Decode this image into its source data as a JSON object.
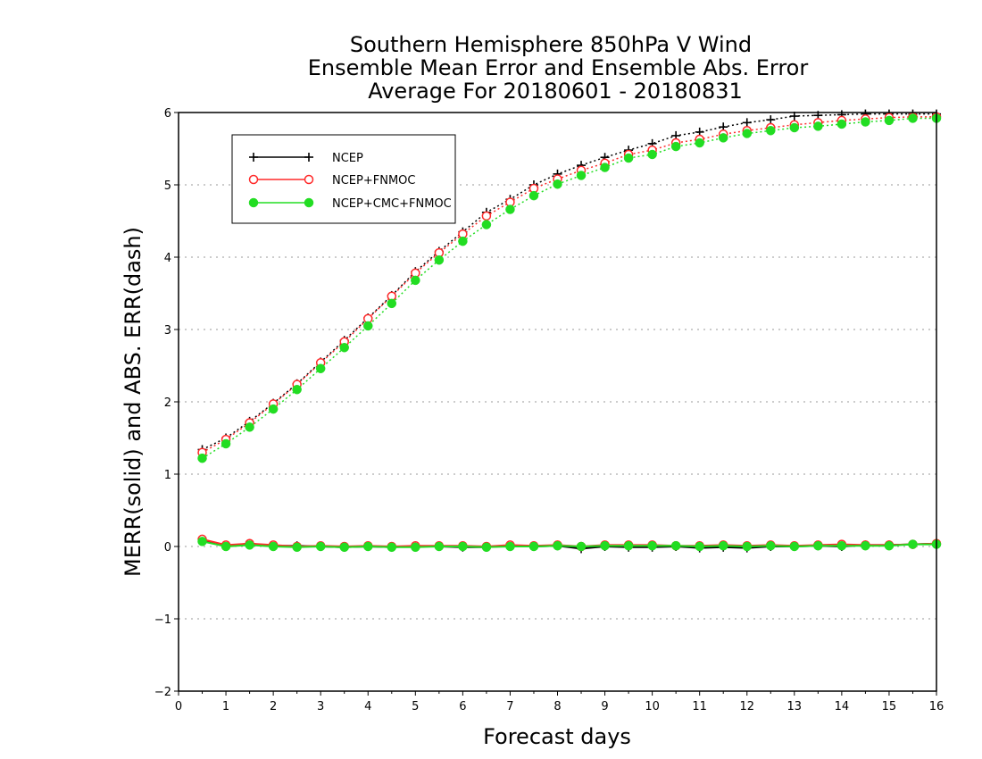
{
  "chart_data": {
    "type": "line",
    "title": [
      "Southern Hemisphere 850hPa V Wind",
      "Ensemble Mean Error and Ensemble Abs. Error",
      "Average For 20180601 - 20180831"
    ],
    "xlabel": "Forecast days",
    "ylabel": "MERR(solid) and ABS. ERR(dash)",
    "xlim": [
      0,
      16
    ],
    "ylim": [
      -2,
      6
    ],
    "xticks": [
      "0",
      "1",
      "2",
      "3",
      "4",
      "5",
      "6",
      "7",
      "8",
      "9",
      "10",
      "11",
      "12",
      "13",
      "14",
      "15",
      "16"
    ],
    "yticks": [
      "−2",
      "−1",
      "0",
      "1",
      "2",
      "3",
      "4",
      "5",
      "6"
    ],
    "grid": "horizontal dotted",
    "legend_position": "top-left",
    "x": [
      0.5,
      1,
      1.5,
      2,
      2.5,
      3,
      3.5,
      4,
      4.5,
      5,
      5.5,
      6,
      6.5,
      7,
      7.5,
      8,
      8.5,
      9,
      9.5,
      10,
      10.5,
      11,
      11.5,
      12,
      12.5,
      13,
      13.5,
      14,
      14.5,
      15,
      15.5,
      16
    ],
    "series": [
      {
        "name": "NCEP",
        "color": "#000000",
        "marker": "plus",
        "merr": [
          0.08,
          0.01,
          0.04,
          0.01,
          0.01,
          0.0,
          -0.01,
          0.0,
          -0.01,
          0.0,
          0.0,
          -0.01,
          -0.01,
          0.01,
          0.0,
          0.01,
          -0.03,
          0.0,
          -0.01,
          -0.01,
          0.0,
          -0.02,
          -0.01,
          -0.02,
          0.0,
          0.0,
          0.01,
          0.0,
          0.02,
          0.02,
          0.03,
          0.04
        ],
        "abs_err": [
          1.34,
          1.5,
          1.73,
          1.98,
          2.25,
          2.55,
          2.85,
          3.16,
          3.47,
          3.8,
          4.08,
          4.35,
          4.62,
          4.8,
          5.0,
          5.15,
          5.27,
          5.38,
          5.48,
          5.57,
          5.68,
          5.73,
          5.8,
          5.86,
          5.9,
          5.95,
          5.96,
          5.97,
          5.98,
          5.98,
          5.98,
          5.98
        ]
      },
      {
        "name": "NCEP+FNMOC",
        "color": "#ff2a2a",
        "marker": "open-circle",
        "merr": [
          0.1,
          0.02,
          0.04,
          0.02,
          0.0,
          0.01,
          0.0,
          0.01,
          0.0,
          0.01,
          0.01,
          0.01,
          0.0,
          0.02,
          0.01,
          0.02,
          0.0,
          0.02,
          0.02,
          0.02,
          0.01,
          0.01,
          0.02,
          0.01,
          0.02,
          0.01,
          0.02,
          0.03,
          0.02,
          0.02,
          0.03,
          0.04
        ],
        "abs_err": [
          1.3,
          1.48,
          1.71,
          1.97,
          2.24,
          2.54,
          2.83,
          3.15,
          3.46,
          3.78,
          4.06,
          4.32,
          4.57,
          4.76,
          4.95,
          5.08,
          5.2,
          5.3,
          5.42,
          5.48,
          5.58,
          5.63,
          5.7,
          5.75,
          5.79,
          5.83,
          5.86,
          5.89,
          5.91,
          5.93,
          5.94,
          5.94
        ]
      },
      {
        "name": "NCEP+CMC+FNMOC",
        "color": "#22dd22",
        "marker": "filled-circle",
        "merr": [
          0.07,
          0.0,
          0.02,
          0.0,
          -0.01,
          0.0,
          -0.01,
          0.0,
          -0.01,
          -0.01,
          0.0,
          0.0,
          -0.01,
          0.0,
          0.0,
          0.01,
          0.0,
          0.01,
          0.01,
          0.01,
          0.01,
          0.0,
          0.01,
          0.0,
          0.01,
          0.0,
          0.01,
          0.01,
          0.01,
          0.01,
          0.03,
          0.03
        ],
        "abs_err": [
          1.22,
          1.42,
          1.65,
          1.9,
          2.17,
          2.46,
          2.75,
          3.05,
          3.36,
          3.68,
          3.96,
          4.22,
          4.45,
          4.66,
          4.85,
          5.01,
          5.13,
          5.24,
          5.37,
          5.42,
          5.53,
          5.58,
          5.65,
          5.71,
          5.75,
          5.79,
          5.81,
          5.84,
          5.87,
          5.89,
          5.92,
          5.92
        ]
      }
    ]
  }
}
